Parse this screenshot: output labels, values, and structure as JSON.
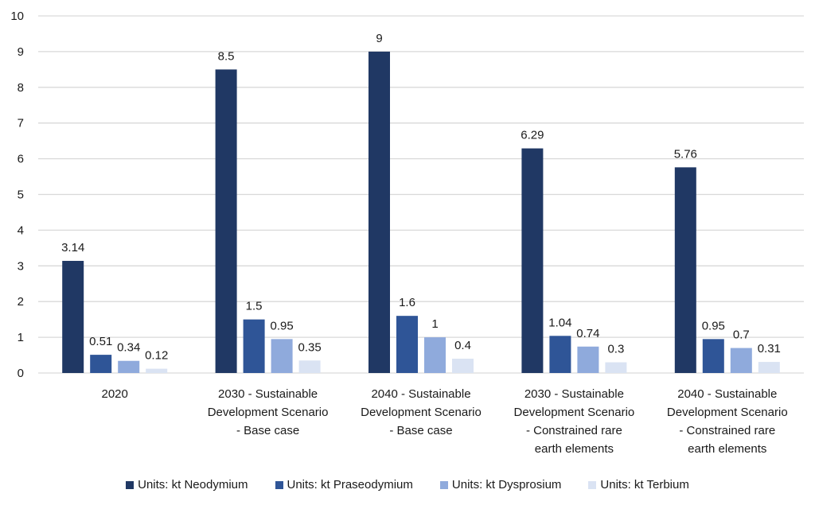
{
  "chart_data": {
    "type": "bar",
    "title": "",
    "xlabel": "",
    "ylabel": "",
    "ylim": [
      0,
      10
    ],
    "yticks": [
      0,
      1,
      2,
      3,
      4,
      5,
      6,
      7,
      8,
      9,
      10
    ],
    "grid": true,
    "legend_position": "bottom",
    "categories": [
      [
        "2020"
      ],
      [
        "2030 - Sustainable",
        "Development Scenario",
        "- Base case"
      ],
      [
        "2040 - Sustainable",
        "Development Scenario",
        "- Base case"
      ],
      [
        "2030 - Sustainable",
        "Development Scenario",
        "- Constrained rare",
        "earth elements"
      ],
      [
        "2040 - Sustainable",
        "Development Scenario",
        "- Constrained rare",
        "earth elements"
      ]
    ],
    "series": [
      {
        "name": "Units: kt Neodymium",
        "color": "#203864",
        "values": [
          3.14,
          8.5,
          9,
          6.29,
          5.76
        ],
        "labels": [
          "3.14",
          "8.5",
          "9",
          "6.29",
          "5.76"
        ]
      },
      {
        "name": "Units: kt Praseodymium",
        "color": "#2F5597",
        "values": [
          0.51,
          1.5,
          1.6,
          1.04,
          0.95
        ],
        "labels": [
          "0.51",
          "1.5",
          "1.6",
          "1.04",
          "0.95"
        ]
      },
      {
        "name": "Units: kt Dysprosium",
        "color": "#8FAADC",
        "values": [
          0.34,
          0.95,
          1,
          0.74,
          0.7
        ],
        "labels": [
          "0.34",
          "0.95",
          "1",
          "0.74",
          "0.7"
        ]
      },
      {
        "name": "Units: kt Terbium",
        "color": "#DAE3F3",
        "values": [
          0.12,
          0.35,
          0.4,
          0.3,
          0.31
        ],
        "labels": [
          "0.12",
          "0.35",
          "0.4",
          "0.3",
          "0.31"
        ]
      }
    ]
  }
}
